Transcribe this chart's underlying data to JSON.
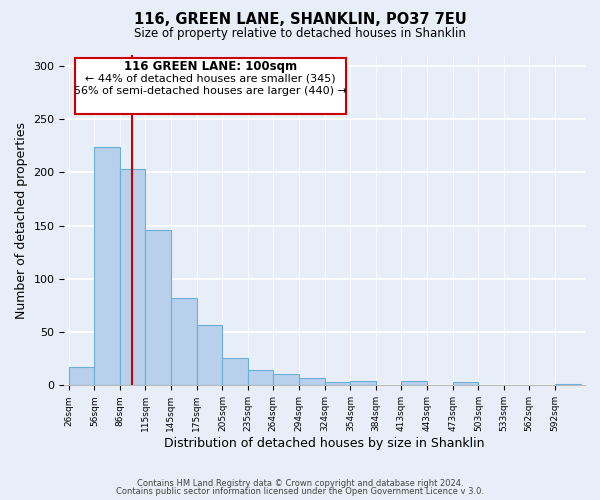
{
  "title": "116, GREEN LANE, SHANKLIN, PO37 7EU",
  "subtitle": "Size of property relative to detached houses in Shanklin",
  "xlabel": "Distribution of detached houses by size in Shanklin",
  "ylabel": "Number of detached properties",
  "bar_color": "#b8d0eb",
  "bar_edge_color": "#6aaed6",
  "background_color": "#e8eef7",
  "annotation_box_color": "#ffffff",
  "annotation_border_color": "#cc0000",
  "red_line_color": "#cc0000",
  "red_line_x": 100,
  "annotation_title": "116 GREEN LANE: 100sqm",
  "annotation_line1": "← 44% of detached houses are smaller (345)",
  "annotation_line2": "56% of semi-detached houses are larger (440) →",
  "footer1": "Contains HM Land Registry data © Crown copyright and database right 2024.",
  "footer2": "Contains public sector information licensed under the Open Government Licence v 3.0.",
  "bin_edges": [
    26,
    56,
    86,
    115,
    145,
    175,
    205,
    235,
    264,
    294,
    324,
    354,
    384,
    413,
    443,
    473,
    503,
    533,
    562,
    592,
    622
  ],
  "bar_heights": [
    17,
    224,
    203,
    146,
    82,
    57,
    26,
    14,
    11,
    7,
    3,
    4,
    0,
    4,
    0,
    3,
    0,
    0,
    0,
    1
  ],
  "ylim": [
    0,
    310
  ],
  "yticks": [
    0,
    50,
    100,
    150,
    200,
    250,
    300
  ]
}
